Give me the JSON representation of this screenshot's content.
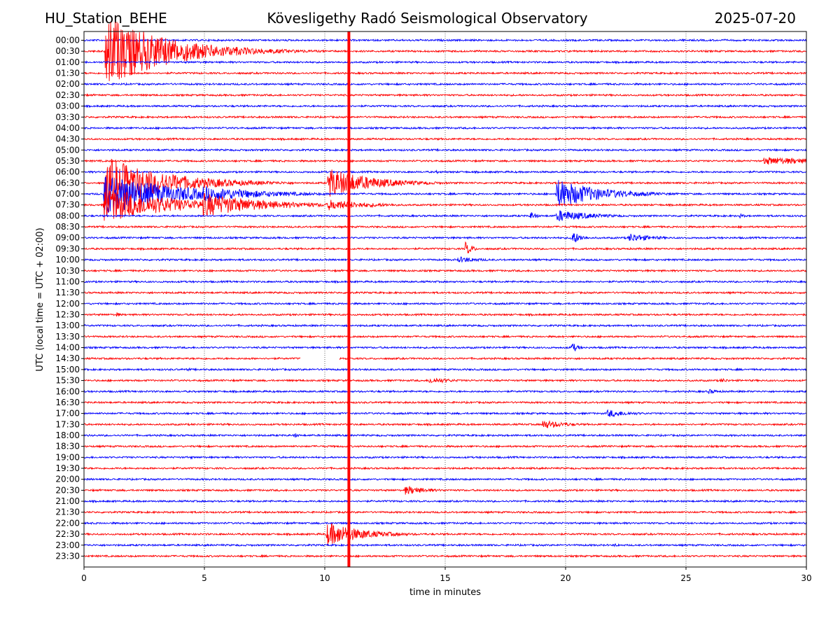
{
  "header": {
    "station": "HU_Station_BEHE",
    "observatory": "Kövesligethy Radó Seismological Observatory",
    "date": "2025-07-20"
  },
  "chart_data": {
    "type": "line",
    "title": "Kövesligethy Radó Seismological Observatory",
    "xlabel": "time in minutes",
    "ylabel": "UTC (local time = UTC + 02:00)",
    "xlim": [
      0,
      30
    ],
    "xticks": [
      0,
      5,
      10,
      15,
      20,
      25,
      30
    ],
    "rows": [
      "00:00",
      "00:30",
      "01:00",
      "01:30",
      "02:00",
      "02:30",
      "03:00",
      "03:30",
      "04:00",
      "04:30",
      "05:00",
      "05:30",
      "06:00",
      "06:30",
      "07:00",
      "07:30",
      "08:00",
      "08:30",
      "09:00",
      "09:30",
      "10:00",
      "10:30",
      "11:00",
      "11:30",
      "12:00",
      "12:30",
      "13:00",
      "13:30",
      "14:00",
      "14:30",
      "15:00",
      "15:30",
      "16:00",
      "16:30",
      "17:00",
      "17:30",
      "18:00",
      "18:30",
      "19:00",
      "19:30",
      "20:00",
      "20:30",
      "21:00",
      "21:30",
      "22:00",
      "22:30",
      "23:00",
      "23:30"
    ],
    "trace_colors": [
      "#0000ff",
      "#ff0000"
    ],
    "grid": "vertical dotted",
    "marker": {
      "x": 11.0,
      "color": "#ff0000"
    },
    "gaps": [
      {
        "row": "14:30",
        "start": 9.0,
        "end": 10.6
      }
    ],
    "events": [
      {
        "row": "00:30",
        "start": 0.85,
        "dur": 10.0,
        "amp": 55,
        "decay": 2.5
      },
      {
        "row": "06:30",
        "start": 0.85,
        "dur": 8.0,
        "amp": 38,
        "decay": 2.5
      },
      {
        "row": "07:00",
        "start": 0.8,
        "dur": 8.5,
        "amp": 32,
        "decay": 2.8
      },
      {
        "row": "07:30",
        "start": 0.8,
        "dur": 7.0,
        "amp": 26,
        "decay": 2.8
      },
      {
        "row": "07:00",
        "start": 4.9,
        "dur": 6.5,
        "amp": 12,
        "decay": 2.5
      },
      {
        "row": "07:30",
        "start": 4.9,
        "dur": 6.5,
        "amp": 18,
        "decay": 2.5
      },
      {
        "row": "06:30",
        "start": 10.1,
        "dur": 6.0,
        "amp": 22,
        "decay": 1.8
      },
      {
        "row": "07:30",
        "start": 10.1,
        "dur": 3.0,
        "amp": 8,
        "decay": 1.8
      },
      {
        "row": "07:00",
        "start": 19.6,
        "dur": 6.0,
        "amp": 22,
        "decay": 1.8
      },
      {
        "row": "08:00",
        "start": 19.6,
        "dur": 3.0,
        "amp": 9,
        "decay": 1.5
      },
      {
        "row": "22:30",
        "start": 10.05,
        "dur": 6.0,
        "amp": 18,
        "decay": 1.5
      },
      {
        "row": "05:30",
        "start": 28.2,
        "dur": 1.8,
        "amp": 6,
        "decay": 3.0
      },
      {
        "row": "06:00",
        "start": 14.6,
        "dur": 0.3,
        "amp": 3,
        "decay": 0.3
      },
      {
        "row": "08:00",
        "start": 18.5,
        "dur": 0.5,
        "amp": 7,
        "decay": 0.3
      },
      {
        "row": "08:00",
        "start": 27.2,
        "dur": 0.3,
        "amp": 5,
        "decay": 0.2
      },
      {
        "row": "09:00",
        "start": 20.2,
        "dur": 0.8,
        "amp": 12,
        "decay": 0.4
      },
      {
        "row": "09:00",
        "start": 22.6,
        "dur": 1.8,
        "amp": 7,
        "decay": 1.0
      },
      {
        "row": "09:30",
        "start": 15.8,
        "dur": 0.5,
        "amp": 12,
        "decay": 0.3
      },
      {
        "row": "10:00",
        "start": 15.5,
        "dur": 3.0,
        "amp": 5,
        "decay": 1.0
      },
      {
        "row": "12:30",
        "start": 1.3,
        "dur": 0.3,
        "amp": 5,
        "decay": 0.2
      },
      {
        "row": "14:00",
        "start": 20.2,
        "dur": 0.6,
        "amp": 9,
        "decay": 0.3
      },
      {
        "row": "15:00",
        "start": 4.3,
        "dur": 0.2,
        "amp": 5,
        "decay": 0.1
      },
      {
        "row": "15:30",
        "start": 14.3,
        "dur": 2.5,
        "amp": 5,
        "decay": 1.0
      },
      {
        "row": "15:30",
        "start": 26.4,
        "dur": 0.8,
        "amp": 4,
        "decay": 0.4
      },
      {
        "row": "16:00",
        "start": 25.9,
        "dur": 1.0,
        "amp": 4,
        "decay": 0.5
      },
      {
        "row": "17:00",
        "start": 21.7,
        "dur": 2.0,
        "amp": 6,
        "decay": 1.0
      },
      {
        "row": "17:30",
        "start": 19.0,
        "dur": 3.0,
        "amp": 7,
        "decay": 1.0
      },
      {
        "row": "18:00",
        "start": 8.7,
        "dur": 0.4,
        "amp": 5,
        "decay": 0.2
      },
      {
        "row": "19:00",
        "start": 4.4,
        "dur": 0.2,
        "amp": 4,
        "decay": 0.1
      },
      {
        "row": "20:30",
        "start": 13.3,
        "dur": 2.5,
        "amp": 7,
        "decay": 1.0
      },
      {
        "row": "23:00",
        "start": 22.0,
        "dur": 0.6,
        "amp": 3,
        "decay": 0.3
      }
    ]
  }
}
